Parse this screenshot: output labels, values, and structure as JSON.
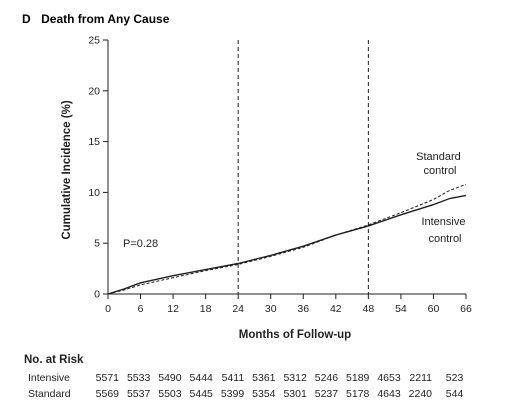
{
  "chart_data": {
    "type": "line",
    "panel_letter": "D",
    "title": "Death from Any Cause",
    "xlabel": "Months of Follow-up",
    "ylabel": "Cumulative Incidence (%)",
    "xlim": [
      0,
      66
    ],
    "ylim": [
      0,
      25
    ],
    "x_ticks": [
      0,
      6,
      12,
      18,
      24,
      30,
      36,
      42,
      48,
      54,
      60,
      66
    ],
    "y_ticks": [
      0,
      5,
      10,
      15,
      20,
      25
    ],
    "reference_lines_x": [
      24,
      48
    ],
    "pvalue_label": "P=0.28",
    "series": [
      {
        "label_lines": [
          "Standard",
          "control"
        ],
        "style": "dashed",
        "x": [
          0,
          3,
          6,
          12,
          18,
          24,
          30,
          36,
          42,
          48,
          54,
          60,
          63,
          66
        ],
        "y": [
          0,
          0.4,
          0.9,
          1.6,
          2.3,
          2.9,
          3.7,
          4.6,
          5.8,
          6.8,
          8.0,
          9.3,
          10.2,
          10.8
        ]
      },
      {
        "label_lines": [
          "Intensive",
          "control"
        ],
        "style": "solid",
        "x": [
          0,
          3,
          6,
          12,
          18,
          24,
          30,
          36,
          42,
          48,
          54,
          60,
          63,
          66
        ],
        "y": [
          0,
          0.5,
          1.1,
          1.8,
          2.4,
          3.0,
          3.8,
          4.7,
          5.8,
          6.7,
          7.8,
          8.8,
          9.4,
          9.7
        ]
      }
    ]
  },
  "at_risk": {
    "heading": "No. at Risk",
    "rows": [
      {
        "label": "Intensive",
        "values": [
          "5571",
          "5533",
          "5490",
          "5444",
          "5411",
          "5361",
          "5312",
          "5246",
          "5189",
          "4653",
          "2211",
          "523"
        ]
      },
      {
        "label": "Standard",
        "values": [
          "5569",
          "5537",
          "5503",
          "5445",
          "5399",
          "5354",
          "5301",
          "5237",
          "5178",
          "4643",
          "2240",
          "544"
        ]
      }
    ]
  }
}
